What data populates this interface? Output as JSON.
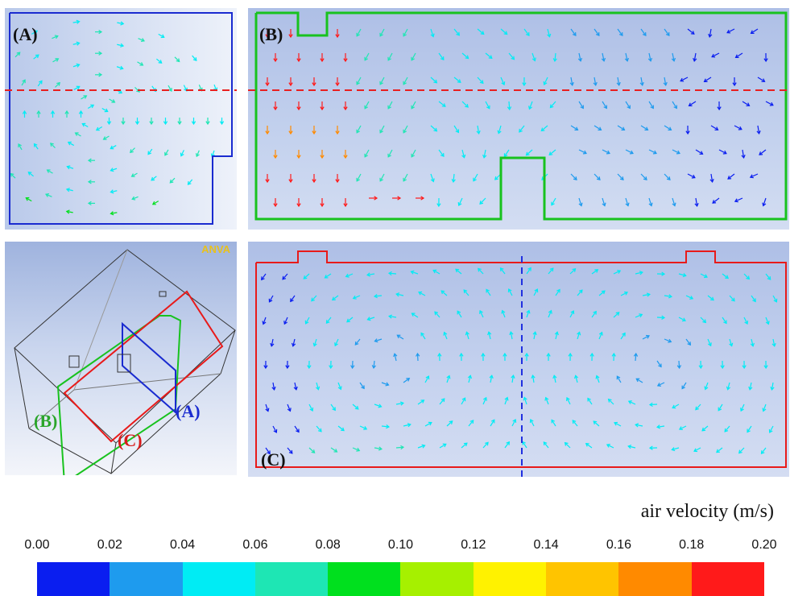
{
  "panels": {
    "a": {
      "label": "(A)"
    },
    "b": {
      "label": "(B)"
    },
    "c": {
      "label": "(C)"
    },
    "iso": {
      "label_a": "(A)",
      "label_b": "(B)",
      "label_c": "(C)",
      "logo": "ANVA"
    }
  },
  "legend": {
    "title": "air velocity (m/s)",
    "ticks": [
      "0.00",
      "0.02",
      "0.04",
      "0.06",
      "0.08",
      "0.10",
      "0.12",
      "0.14",
      "0.16",
      "0.18",
      "0.20"
    ],
    "colors": [
      "#0a1ef0",
      "#1e9bee",
      "#00ecf4",
      "#1ee6b4",
      "#00e01e",
      "#a6f000",
      "#fff200",
      "#ffc400",
      "#ff8a00",
      "#ff1a1a"
    ]
  },
  "colors": {
    "section_a": "#1a2bd0",
    "section_b": "#18c21e",
    "section_c": "#e81a1a",
    "cut_line": "#e82020",
    "label_a_color": "#1a2bd0",
    "label_b_color": "#2aa52a",
    "label_c_color": "#d81a1a"
  }
}
